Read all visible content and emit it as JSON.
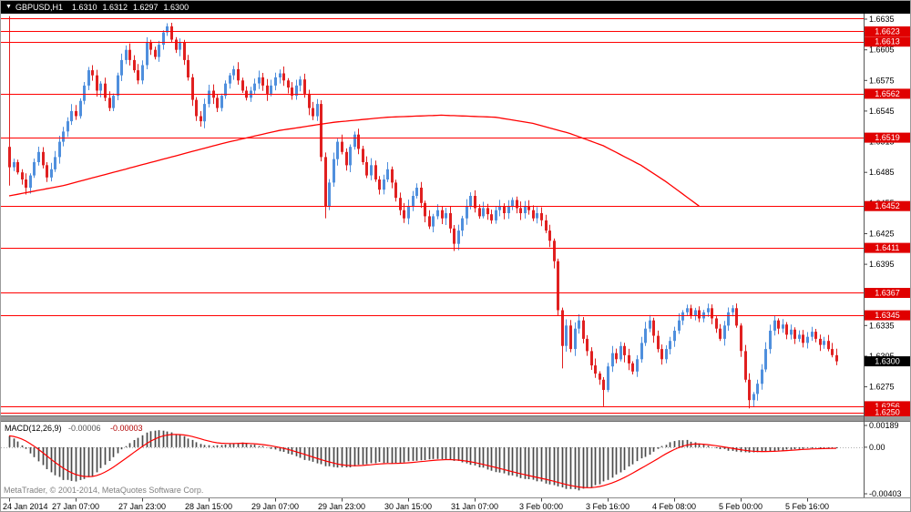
{
  "title_bar": {
    "selector_icon": "▼",
    "symbol": "GBPUSD,H1",
    "open": "1.6310",
    "high": "1.6312",
    "low": "1.6297",
    "close": "1.6300"
  },
  "chart_data": {
    "type": "candlestick",
    "symbol": "GBPUSD",
    "timeframe": "H1",
    "y_axis": {
      "visible_max": 1.66386,
      "visible_min": 1.6247,
      "ticks": [
        1.6635,
        1.6605,
        1.6575,
        1.6545,
        1.6515,
        1.6485,
        1.6455,
        1.6425,
        1.6395,
        1.6365,
        1.6335,
        1.6305,
        1.6275,
        1.6245
      ]
    },
    "x_labels": [
      "24 Jan 2014",
      "27 Jan 07:00",
      "27 Jan 23:00",
      "28 Jan 15:00",
      "29 Jan 07:00",
      "29 Jan 23:00",
      "30 Jan 15:00",
      "31 Jan 07:00",
      "3 Feb 00:00",
      "3 Feb 16:00",
      "4 Feb 08:00",
      "5 Feb 00:00",
      "5 Feb 16:00"
    ],
    "first_open": 1.651,
    "closes": [
      1.649,
      1.6495,
      1.6485,
      1.6478,
      1.647,
      1.6482,
      1.6495,
      1.6505,
      1.6492,
      1.648,
      1.6488,
      1.65,
      1.6515,
      1.6525,
      1.6535,
      1.6545,
      1.654,
      1.6555,
      1.657,
      1.6585,
      1.658,
      1.6565,
      1.6572,
      1.6558,
      1.6548,
      1.656,
      1.658,
      1.6595,
      1.6605,
      1.6595,
      1.6585,
      1.6575,
      1.659,
      1.6612,
      1.6605,
      1.6598,
      1.661,
      1.6622,
      1.6628,
      1.6615,
      1.6605,
      1.6612,
      1.6595,
      1.6578,
      1.6556,
      1.654,
      1.6535,
      1.6552,
      1.6565,
      1.6558,
      1.6548,
      1.656,
      1.6572,
      1.658,
      1.6586,
      1.6575,
      1.6565,
      1.6558,
      1.6565,
      1.6572,
      1.6578,
      1.657,
      1.6562,
      1.657,
      1.6578,
      1.6582,
      1.6575,
      1.6568,
      1.656,
      1.657,
      1.6576,
      1.6562,
      1.6548,
      1.654,
      1.6552,
      1.65,
      1.6452,
      1.6475,
      1.6498,
      1.6515,
      1.6505,
      1.6492,
      1.651,
      1.6522,
      1.6508,
      1.6495,
      1.6482,
      1.6492,
      1.6478,
      1.6468,
      1.6478,
      1.6488,
      1.6475,
      1.646,
      1.6448,
      1.644,
      1.6452,
      1.6462,
      1.647,
      1.6455,
      1.6442,
      1.6432,
      1.6442,
      1.6448,
      1.644,
      1.6445,
      1.643,
      1.6415,
      1.6428,
      1.644,
      1.6452,
      1.6462,
      1.645,
      1.6442,
      1.645,
      1.6444,
      1.6438,
      1.6448,
      1.6452,
      1.6445,
      1.6452,
      1.6458,
      1.645,
      1.6445,
      1.6452,
      1.6448,
      1.644,
      1.6445,
      1.6438,
      1.6428,
      1.6418,
      1.6398,
      1.635,
      1.6315,
      1.6335,
      1.6312,
      1.6332,
      1.634,
      1.6322,
      1.631,
      1.6296,
      1.6288,
      1.6282,
      1.6272,
      1.6295,
      1.6308,
      1.6302,
      1.6315,
      1.6306,
      1.6298,
      1.629,
      1.6302,
      1.6318,
      1.6332,
      1.634,
      1.6325,
      1.6312,
      1.6302,
      1.6312,
      1.632,
      1.633,
      1.634,
      1.6348,
      1.6352,
      1.6345,
      1.635,
      1.6342,
      1.6348,
      1.6352,
      1.6342,
      1.6332,
      1.6322,
      1.6335,
      1.6348,
      1.6352,
      1.6335,
      1.631,
      1.6282,
      1.6262,
      1.6268,
      1.6278,
      1.6292,
      1.6312,
      1.633,
      1.634,
      1.6332,
      1.6336,
      1.6326,
      1.6331,
      1.6322,
      1.6326,
      1.6318,
      1.6324,
      1.6329,
      1.6322,
      1.6316,
      1.632,
      1.6312,
      1.6306,
      1.63
    ],
    "high_overrides": {
      "0": 1.6638,
      "38": 1.6631
    },
    "low_overrides": {
      "0": 1.6472,
      "76": 1.644,
      "107": 1.6408,
      "131": 1.6391,
      "133": 1.6293,
      "143": 1.6256,
      "178": 1.6254
    },
    "ma_line": {
      "end_index": 166,
      "keyframes": [
        [
          0,
          1.6462
        ],
        [
          13,
          1.6472
        ],
        [
          26,
          1.6486
        ],
        [
          39,
          1.65
        ],
        [
          52,
          1.6514
        ],
        [
          65,
          1.6526
        ],
        [
          78,
          1.6534
        ],
        [
          91,
          1.6539
        ],
        [
          104,
          1.6541
        ],
        [
          117,
          1.6539
        ],
        [
          126,
          1.6533
        ],
        [
          135,
          1.6523
        ],
        [
          143,
          1.6511
        ],
        [
          152,
          1.6492
        ],
        [
          158,
          1.6476
        ],
        [
          163,
          1.6461
        ],
        [
          166,
          1.6452
        ]
      ]
    },
    "levels": {
      "lines": [
        {
          "price": 1.6636,
          "badge": false
        },
        {
          "price": 1.6623
        },
        {
          "price": 1.6613
        },
        {
          "price": 1.6562
        },
        {
          "price": 1.6519
        },
        {
          "price": 1.6452
        },
        {
          "price": 1.6411
        },
        {
          "price": 1.6367
        },
        {
          "price": 1.6345
        },
        {
          "price": 1.6256
        },
        {
          "price": 1.625
        }
      ],
      "current_price": {
        "price": 1.63,
        "label": "1.6300"
      }
    },
    "colors": {
      "bull": "#4f8fdd",
      "bear": "#e02020",
      "line": "#ff0000",
      "ma": "#ff0000",
      "badge": "#e00000",
      "current_badge": "#000000",
      "macd_bar": "#4a4a4a",
      "macd_signal": "#ff0000"
    },
    "macd": {
      "name_label": "MACD(12,26,9)",
      "value_macd": "-0.00006",
      "value_signal": "-0.00003",
      "y_ticks": [
        {
          "label": "0.00189",
          "value": 0.00189
        },
        {
          "label": "0.00",
          "value": 0
        },
        {
          "label": "-0.00403",
          "value": -0.00403
        }
      ],
      "keyframes": [
        [
          0,
          0.001
        ],
        [
          3,
          0.0002
        ],
        [
          7,
          -0.0012
        ],
        [
          10,
          -0.0022
        ],
        [
          13,
          -0.0028
        ],
        [
          16,
          -0.003
        ],
        [
          20,
          -0.0025
        ],
        [
          23,
          -0.0015
        ],
        [
          26,
          -0.0005
        ],
        [
          30,
          0.0006
        ],
        [
          33,
          0.0013
        ],
        [
          36,
          0.0015
        ],
        [
          39,
          0.0013
        ],
        [
          43,
          0.0008
        ],
        [
          46,
          0.0003
        ],
        [
          49,
          0.0001
        ],
        [
          53,
          0.0003
        ],
        [
          56,
          0.0004
        ],
        [
          59,
          0.0002
        ],
        [
          62,
          0.0
        ],
        [
          66,
          -0.0004
        ],
        [
          69,
          -0.0008
        ],
        [
          72,
          -0.0012
        ],
        [
          76,
          -0.0016
        ],
        [
          79,
          -0.0018
        ],
        [
          82,
          -0.0017
        ],
        [
          85,
          -0.0015
        ],
        [
          89,
          -0.0013
        ],
        [
          92,
          -0.0014
        ],
        [
          95,
          -0.0013
        ],
        [
          99,
          -0.0011
        ],
        [
          102,
          -0.001
        ],
        [
          105,
          -0.001
        ],
        [
          108,
          -0.0012
        ],
        [
          112,
          -0.0016
        ],
        [
          116,
          -0.002
        ],
        [
          120,
          -0.0024
        ],
        [
          124,
          -0.0027
        ],
        [
          128,
          -0.003
        ],
        [
          131,
          -0.0033
        ],
        [
          134,
          -0.0036
        ],
        [
          137,
          -0.0037
        ],
        [
          140,
          -0.0035
        ],
        [
          143,
          -0.003
        ],
        [
          146,
          -0.0024
        ],
        [
          149,
          -0.0017
        ],
        [
          152,
          -0.001
        ],
        [
          155,
          -0.0004
        ],
        [
          157,
          0.0001
        ],
        [
          159,
          0.0004
        ],
        [
          161,
          0.0006
        ],
        [
          163,
          0.0006
        ],
        [
          165,
          0.0004
        ],
        [
          167,
          0.0002
        ],
        [
          169,
          0.0
        ],
        [
          172,
          -0.0002
        ],
        [
          175,
          -0.0004
        ],
        [
          178,
          -0.0005
        ],
        [
          181,
          -0.0004
        ],
        [
          184,
          -0.0003
        ],
        [
          187,
          -0.0002
        ],
        [
          190,
          -0.0001
        ],
        [
          193,
          -8e-05
        ],
        [
          196,
          -7e-05
        ],
        [
          199,
          -6e-05
        ]
      ]
    }
  },
  "footer": {
    "copyright": "MetaTrader, © 2001-2014, MetaQuotes Software Corp."
  }
}
